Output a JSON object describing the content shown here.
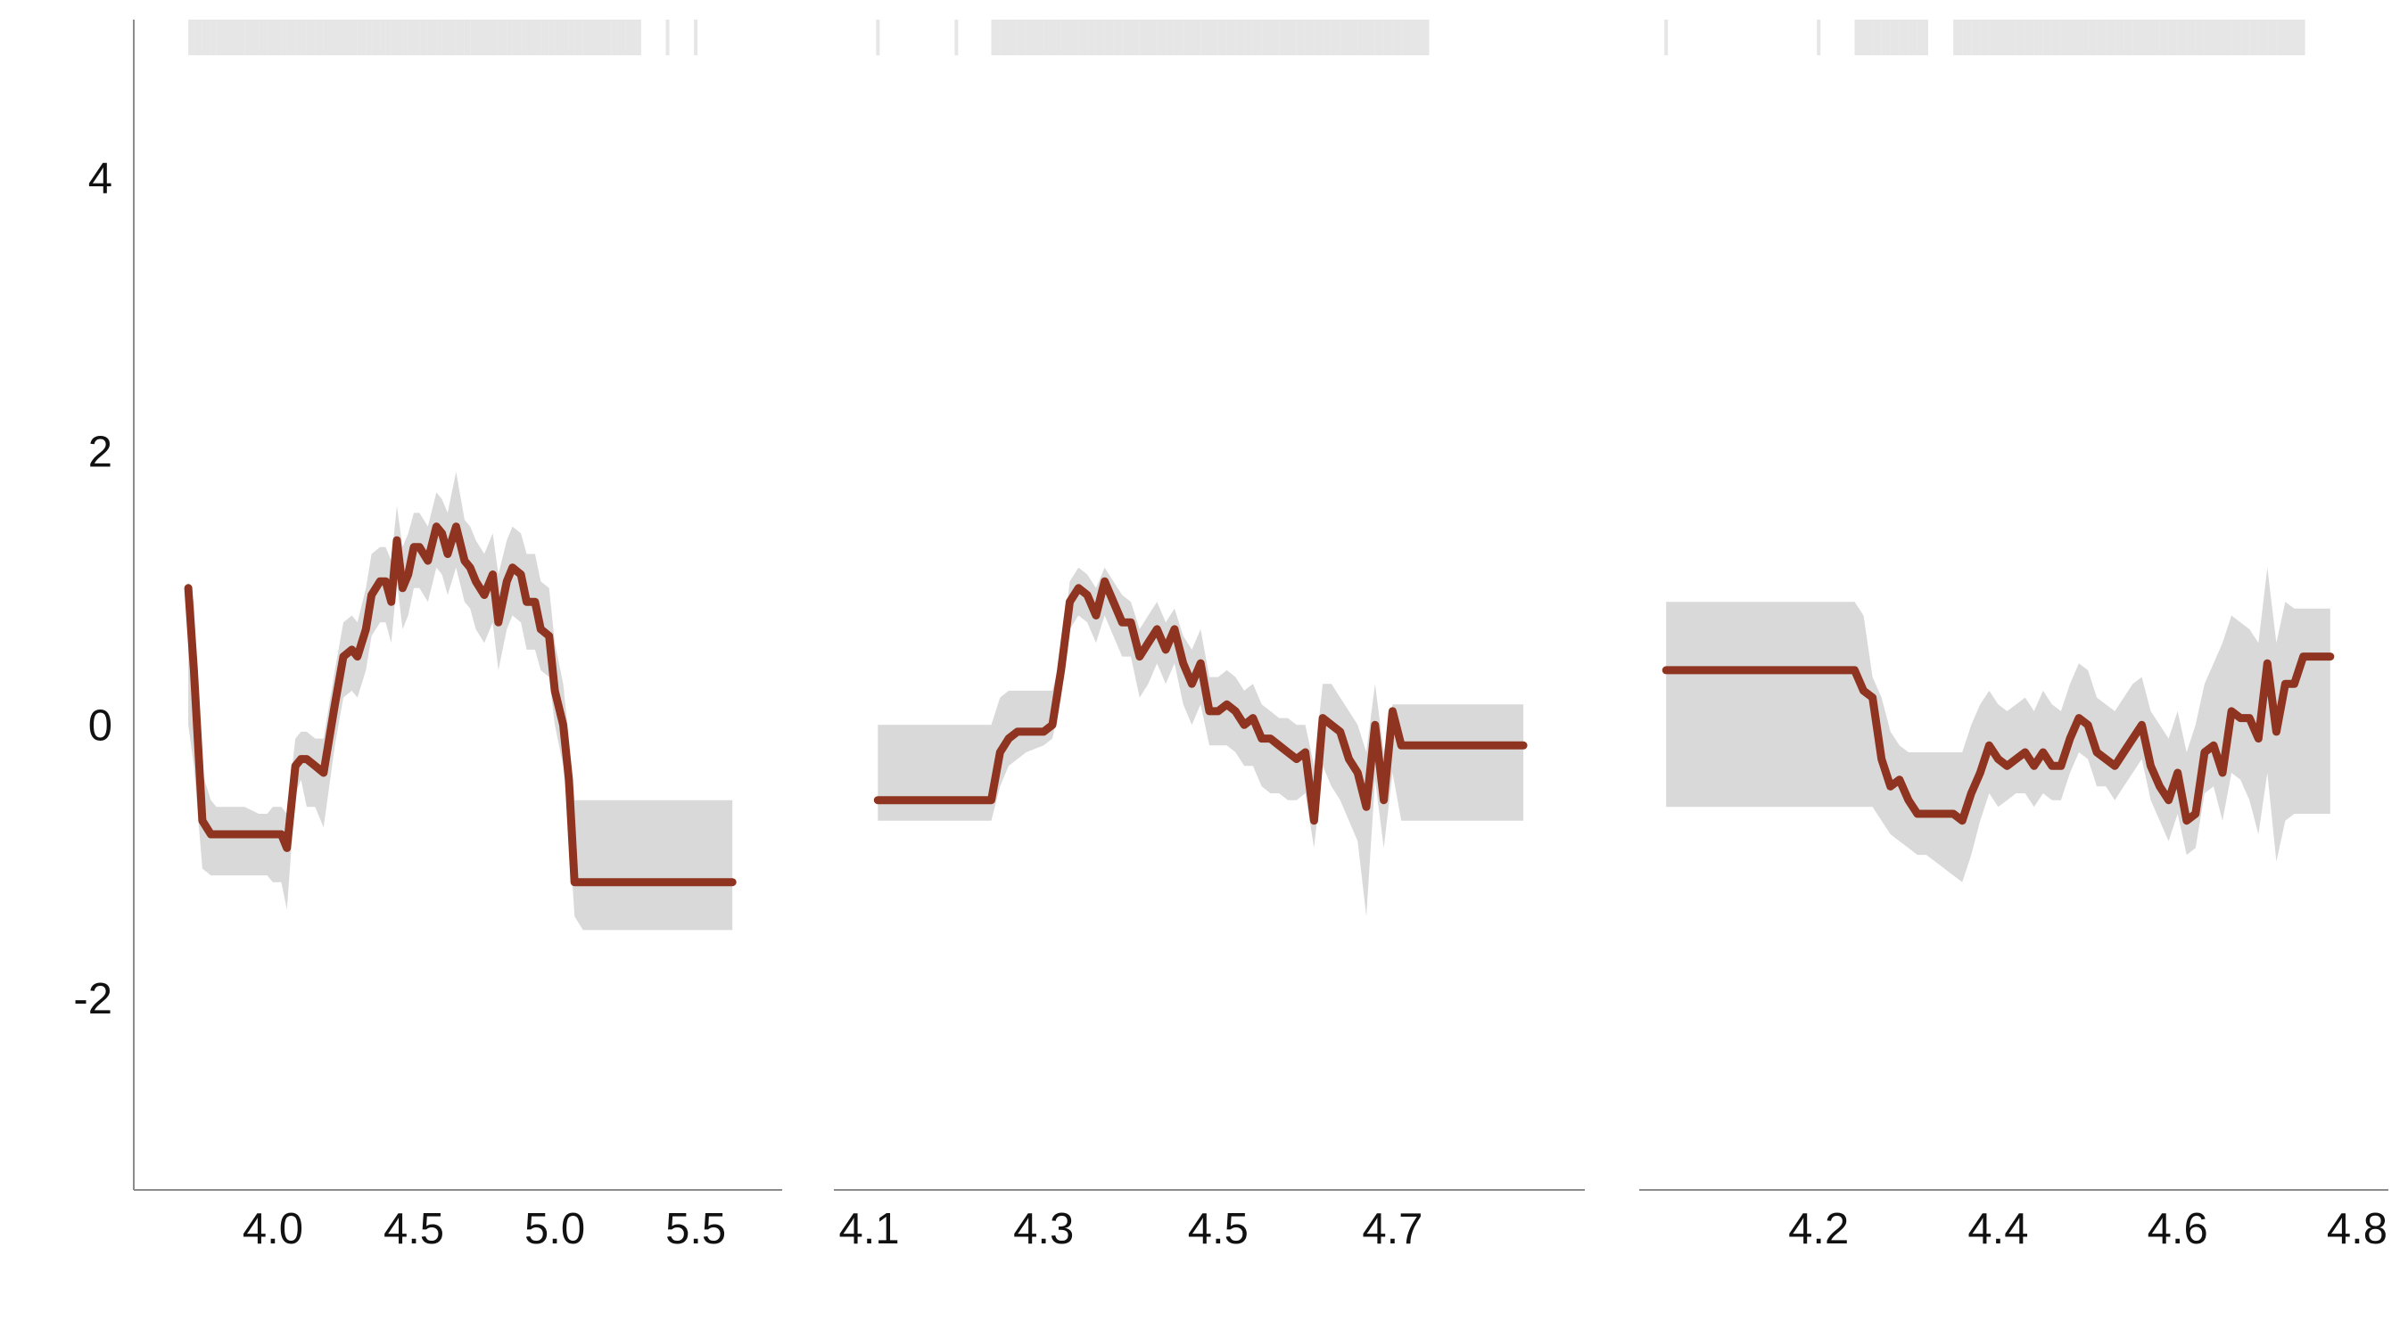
{
  "colors": {
    "line": "#8e3420",
    "band": "#d9d9d9",
    "rug": "#e6e6e6",
    "axis": "#8c8c8c",
    "text": "#111111"
  },
  "chart_data": [
    {
      "type": "line",
      "panel": 1,
      "xlim": [
        3.57,
        5.74
      ],
      "ylim": [
        -3.4,
        5.3
      ],
      "xticks": [
        4.0,
        4.5,
        5.0,
        5.5
      ],
      "xtick_labels": [
        "4.0",
        "4.5",
        "5.0",
        "5.5"
      ],
      "yticks": [
        -2,
        0,
        2,
        4
      ],
      "ytick_labels": [
        "-2",
        "0",
        "2",
        "4"
      ],
      "series": [
        {
          "x": [
            3.7,
            3.72,
            3.75,
            3.78,
            3.8,
            3.85,
            3.9,
            3.95,
            3.98,
            4.0,
            4.03,
            4.05,
            4.08,
            4.1,
            4.12,
            4.15,
            4.18,
            4.22,
            4.25,
            4.28,
            4.3,
            4.33,
            4.35,
            4.38,
            4.4,
            4.42,
            4.44,
            4.46,
            4.48,
            4.5,
            4.52,
            4.55,
            4.58,
            4.6,
            4.62,
            4.65,
            4.68,
            4.7,
            4.72,
            4.75,
            4.78,
            4.8,
            4.83,
            4.85,
            4.88,
            4.9,
            4.93,
            4.95,
            4.98,
            5.0,
            5.03,
            5.05,
            5.07,
            5.1,
            5.12,
            5.15,
            5.18,
            5.2,
            5.22,
            5.25,
            5.3,
            5.4,
            5.5,
            5.63
          ],
          "y": [
            1.0,
            0.4,
            -0.7,
            -0.8,
            -0.8,
            -0.8,
            -0.8,
            -0.8,
            -0.8,
            -0.8,
            -0.8,
            -0.9,
            -0.3,
            -0.25,
            -0.25,
            -0.3,
            -0.35,
            0.15,
            0.5,
            0.55,
            0.5,
            0.7,
            0.95,
            1.05,
            1.05,
            0.9,
            1.35,
            1.0,
            1.1,
            1.3,
            1.3,
            1.2,
            1.45,
            1.4,
            1.25,
            1.45,
            1.2,
            1.15,
            1.05,
            0.95,
            1.1,
            0.75,
            1.05,
            1.15,
            1.1,
            0.9,
            0.9,
            0.7,
            0.65,
            0.25,
            0.0,
            -0.4,
            -1.15,
            -1.15,
            -1.15,
            -1.15,
            -1.15,
            -1.15,
            -1.15,
            -1.15,
            -1.15,
            -1.15,
            -1.15,
            -1.15
          ],
          "lower": [
            0.0,
            -0.3,
            -1.05,
            -1.1,
            -1.1,
            -1.1,
            -1.1,
            -1.1,
            -1.1,
            -1.15,
            -1.15,
            -1.35,
            -0.5,
            -0.4,
            -0.6,
            -0.6,
            -0.75,
            -0.15,
            0.2,
            0.25,
            0.2,
            0.4,
            0.65,
            0.75,
            0.75,
            0.6,
            1.05,
            0.7,
            0.8,
            1.0,
            1.0,
            0.9,
            1.15,
            1.1,
            0.95,
            1.15,
            0.9,
            0.85,
            0.7,
            0.6,
            0.75,
            0.4,
            0.7,
            0.8,
            0.75,
            0.55,
            0.55,
            0.4,
            0.35,
            0.0,
            -0.3,
            -0.75,
            -1.4,
            -1.5,
            -1.5,
            -1.5,
            -1.5,
            -1.5,
            -1.5,
            -1.5,
            -1.5,
            -1.5,
            -1.5,
            -1.5
          ],
          "upper": [
            1.05,
            0.9,
            -0.35,
            -0.55,
            -0.6,
            -0.6,
            -0.6,
            -0.65,
            -0.65,
            -0.6,
            -0.6,
            -0.65,
            -0.1,
            -0.05,
            -0.05,
            -0.1,
            -0.1,
            0.4,
            0.75,
            0.8,
            0.75,
            1.0,
            1.25,
            1.3,
            1.3,
            1.2,
            1.6,
            1.3,
            1.4,
            1.55,
            1.55,
            1.45,
            1.7,
            1.65,
            1.55,
            1.85,
            1.5,
            1.45,
            1.35,
            1.25,
            1.4,
            1.1,
            1.35,
            1.45,
            1.4,
            1.25,
            1.25,
            1.05,
            1.0,
            0.6,
            0.3,
            -0.1,
            -0.55,
            -0.55,
            -0.55,
            -0.55,
            -0.55,
            -0.55,
            -0.55,
            -0.55,
            -0.55,
            -0.55,
            -0.55,
            -0.55
          ]
        }
      ]
    },
    {
      "type": "line",
      "panel": 2,
      "xlim": [
        4.08,
        4.9
      ],
      "ylim": [
        -3.4,
        5.3
      ],
      "xticks": [
        4.1,
        4.3,
        4.5,
        4.7
      ],
      "xtick_labels": [
        "4.1",
        "4.3",
        "4.5",
        "4.7"
      ],
      "yticks": [],
      "ytick_labels": [],
      "series": [
        {
          "x": [
            4.11,
            4.2,
            4.24,
            4.25,
            4.26,
            4.27,
            4.28,
            4.3,
            4.31,
            4.32,
            4.33,
            4.34,
            4.35,
            4.36,
            4.37,
            4.38,
            4.39,
            4.4,
            4.41,
            4.42,
            4.43,
            4.44,
            4.45,
            4.46,
            4.47,
            4.48,
            4.49,
            4.5,
            4.51,
            4.52,
            4.53,
            4.54,
            4.55,
            4.56,
            4.57,
            4.58,
            4.59,
            4.6,
            4.61,
            4.62,
            4.63,
            4.64,
            4.65,
            4.66,
            4.67,
            4.68,
            4.69,
            4.7,
            4.71,
            4.72,
            4.74,
            4.85
          ],
          "y": [
            -0.55,
            -0.55,
            -0.55,
            -0.2,
            -0.1,
            -0.05,
            -0.05,
            -0.05,
            0.0,
            0.4,
            0.9,
            1.0,
            0.95,
            0.8,
            1.05,
            0.9,
            0.75,
            0.75,
            0.5,
            0.6,
            0.7,
            0.55,
            0.7,
            0.45,
            0.3,
            0.45,
            0.1,
            0.1,
            0.15,
            0.1,
            0.0,
            0.05,
            -0.1,
            -0.1,
            -0.15,
            -0.2,
            -0.25,
            -0.2,
            -0.7,
            0.05,
            0.0,
            -0.05,
            -0.25,
            -0.35,
            -0.6,
            0.0,
            -0.55,
            0.1,
            -0.15,
            -0.15,
            -0.15,
            -0.15
          ],
          "lower": [
            -0.7,
            -0.7,
            -0.7,
            -0.45,
            -0.3,
            -0.25,
            -0.2,
            -0.15,
            -0.1,
            0.2,
            0.7,
            0.8,
            0.75,
            0.6,
            0.8,
            0.65,
            0.5,
            0.5,
            0.2,
            0.3,
            0.45,
            0.3,
            0.45,
            0.15,
            0.0,
            0.15,
            -0.15,
            -0.15,
            -0.15,
            -0.2,
            -0.3,
            -0.3,
            -0.45,
            -0.5,
            -0.5,
            -0.55,
            -0.55,
            -0.5,
            -0.9,
            -0.3,
            -0.45,
            -0.55,
            -0.7,
            -0.85,
            -1.4,
            -0.4,
            -0.9,
            -0.35,
            -0.7,
            -0.7,
            -0.7,
            -0.7
          ],
          "upper": [
            0.0,
            0.0,
            0.0,
            0.2,
            0.25,
            0.25,
            0.25,
            0.25,
            0.25,
            0.5,
            1.05,
            1.15,
            1.1,
            1.0,
            1.15,
            1.05,
            0.95,
            0.9,
            0.7,
            0.8,
            0.9,
            0.75,
            0.85,
            0.65,
            0.55,
            0.7,
            0.35,
            0.35,
            0.4,
            0.35,
            0.25,
            0.3,
            0.15,
            0.1,
            0.05,
            0.05,
            0.0,
            0.0,
            -0.3,
            0.3,
            0.3,
            0.2,
            0.1,
            0.0,
            -0.2,
            0.3,
            -0.2,
            0.15,
            0.15,
            0.15,
            0.15,
            0.15
          ]
        }
      ]
    },
    {
      "type": "line",
      "panel": 3,
      "xlim": [
        4.0,
        4.81
      ],
      "ylim": [
        -3.4,
        5.3
      ],
      "xticks": [
        4.2,
        4.4,
        4.6,
        4.8
      ],
      "xtick_labels": [
        "4.2",
        "4.4",
        "4.6",
        "4.8"
      ],
      "yticks": [],
      "ytick_labels": [],
      "series": [
        {
          "x": [
            4.03,
            4.2,
            4.24,
            4.25,
            4.26,
            4.27,
            4.28,
            4.29,
            4.3,
            4.31,
            4.32,
            4.35,
            4.36,
            4.37,
            4.38,
            4.39,
            4.4,
            4.41,
            4.42,
            4.43,
            4.44,
            4.45,
            4.46,
            4.47,
            4.48,
            4.49,
            4.5,
            4.51,
            4.52,
            4.53,
            4.54,
            4.55,
            4.56,
            4.57,
            4.58,
            4.59,
            4.6,
            4.61,
            4.62,
            4.63,
            4.64,
            4.65,
            4.66,
            4.67,
            4.68,
            4.69,
            4.7,
            4.71,
            4.72,
            4.73,
            4.74,
            4.77
          ],
          "y": [
            0.4,
            0.4,
            0.4,
            0.25,
            0.2,
            -0.25,
            -0.45,
            -0.4,
            -0.55,
            -0.65,
            -0.65,
            -0.65,
            -0.7,
            -0.5,
            -0.35,
            -0.15,
            -0.25,
            -0.3,
            -0.25,
            -0.2,
            -0.3,
            -0.2,
            -0.3,
            -0.3,
            -0.1,
            0.05,
            0.0,
            -0.2,
            -0.25,
            -0.3,
            -0.2,
            -0.1,
            0.0,
            -0.3,
            -0.45,
            -0.55,
            -0.35,
            -0.7,
            -0.65,
            -0.2,
            -0.15,
            -0.35,
            0.1,
            0.05,
            0.05,
            -0.1,
            0.45,
            -0.05,
            0.3,
            0.3,
            0.5,
            0.5
          ],
          "lower": [
            -0.6,
            -0.6,
            -0.6,
            -0.6,
            -0.6,
            -0.7,
            -0.8,
            -0.85,
            -0.9,
            -0.95,
            -0.95,
            -1.1,
            -1.15,
            -0.95,
            -0.7,
            -0.5,
            -0.6,
            -0.55,
            -0.5,
            -0.5,
            -0.6,
            -0.5,
            -0.55,
            -0.55,
            -0.35,
            -0.2,
            -0.25,
            -0.45,
            -0.45,
            -0.55,
            -0.45,
            -0.35,
            -0.25,
            -0.55,
            -0.7,
            -0.85,
            -0.65,
            -0.95,
            -0.9,
            -0.5,
            -0.45,
            -0.7,
            -0.35,
            -0.4,
            -0.55,
            -0.8,
            -0.35,
            -1.0,
            -0.7,
            -0.65,
            -0.65,
            -0.65
          ],
          "upper": [
            0.9,
            0.9,
            0.9,
            0.8,
            0.35,
            0.2,
            -0.05,
            -0.15,
            -0.2,
            -0.2,
            -0.2,
            -0.2,
            -0.2,
            0.0,
            0.15,
            0.25,
            0.15,
            0.1,
            0.15,
            0.2,
            0.1,
            0.25,
            0.15,
            0.1,
            0.3,
            0.45,
            0.4,
            0.2,
            0.15,
            0.1,
            0.2,
            0.3,
            0.35,
            0.1,
            0.0,
            -0.1,
            0.1,
            -0.2,
            0.0,
            0.3,
            0.45,
            0.6,
            0.8,
            0.75,
            0.7,
            0.6,
            1.15,
            0.6,
            0.9,
            0.85,
            0.85,
            0.85
          ]
        }
      ]
    }
  ]
}
